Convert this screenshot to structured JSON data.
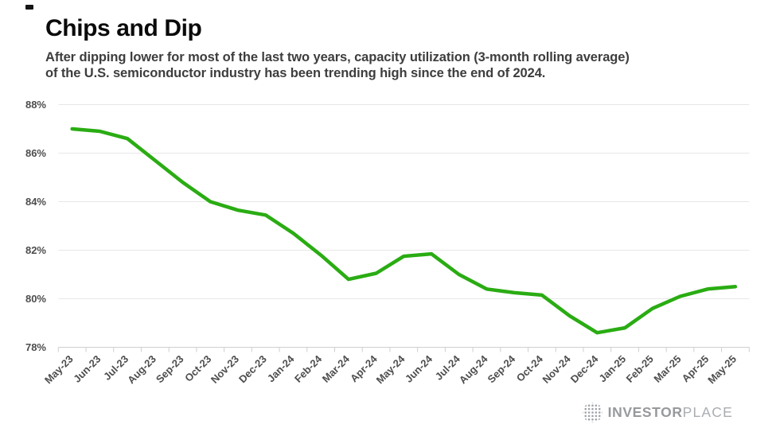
{
  "header": {
    "title": "Chips and Dip",
    "subtitle_lines": [
      "After dipping lower for most of the last two years, capacity utilization (3-month rolling average)",
      "of the U.S. semiconductor industry has been trending high since the end of 2024."
    ]
  },
  "chart_data": {
    "type": "line",
    "title": "Chips and Dip",
    "categories": [
      "May-23",
      "Jun-23",
      "Jul-23",
      "Aug-23",
      "Sep-23",
      "Oct-23",
      "Nov-23",
      "Dec-23",
      "Jan-24",
      "Feb-24",
      "Mar-24",
      "Apr-24",
      "May-24",
      "Jun-24",
      "Jul-24",
      "Aug-24",
      "Sep-24",
      "Oct-24",
      "Nov-24",
      "Dec-24",
      "Jan-25",
      "Feb-25",
      "Mar-25",
      "Apr-25",
      "May-25"
    ],
    "values": [
      87.0,
      86.9,
      86.6,
      85.7,
      84.8,
      84.0,
      83.65,
      83.45,
      82.7,
      81.8,
      80.8,
      81.05,
      81.75,
      81.85,
      81.0,
      80.4,
      80.25,
      80.15,
      79.3,
      78.6,
      78.8,
      79.6,
      80.1,
      80.4,
      80.5
    ],
    "ylim": [
      78,
      88
    ],
    "yticks": [
      78,
      80,
      82,
      84,
      86,
      88
    ],
    "ytick_suffix": "%",
    "grid": "horizontal",
    "legend": "none",
    "line_color": "#2aac13",
    "axis_text_color": "#4d4d4d",
    "gridline_color": "#e7e7e7",
    "axis_line_color": "#cfcfcf"
  },
  "footer": {
    "brand_bold": "INVESTOR",
    "brand_light": "PLACE",
    "logo_icon": "halftone-globe-icon"
  }
}
